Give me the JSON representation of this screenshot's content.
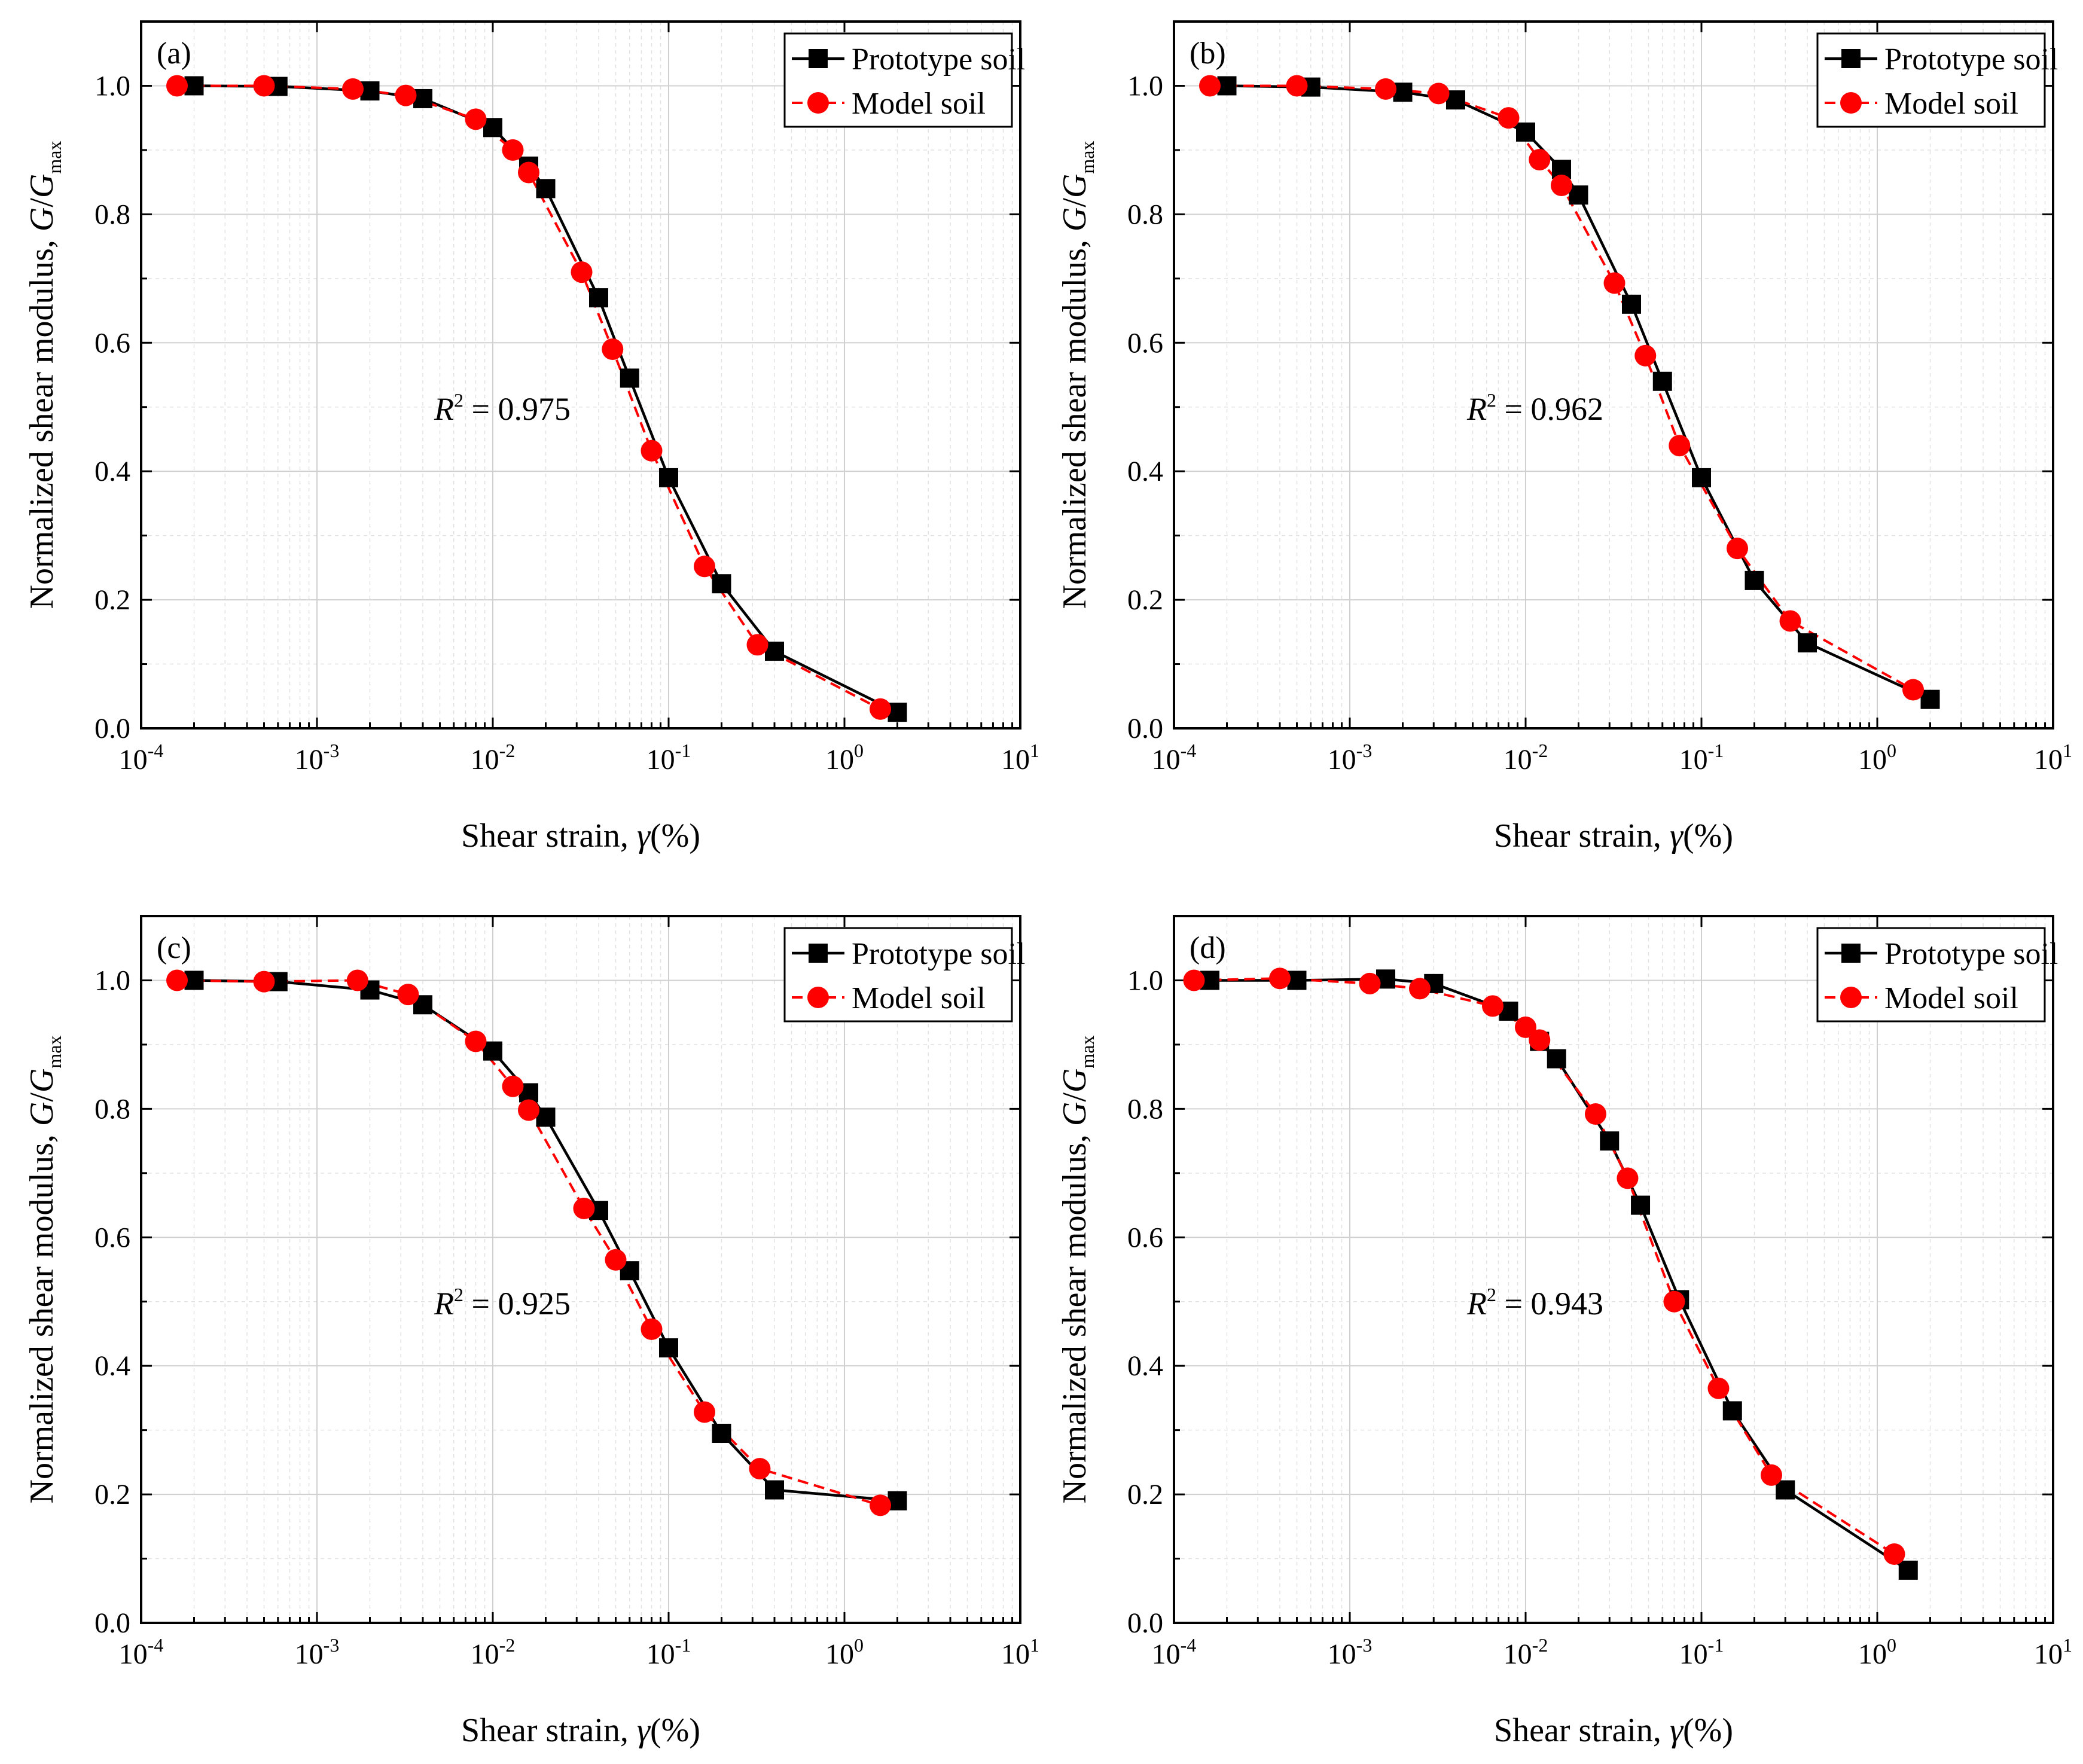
{
  "colors": {
    "prototype": "#000000",
    "model": "#ff0000",
    "grid": "#d0d0d0",
    "axis": "#000000"
  },
  "common": {
    "x_label_prefix": "Shear strain, ",
    "x_label_symbol": "γ",
    "x_label_unit": "(%)",
    "y_label_prefix": "Normalized shear modulus, ",
    "y_label_symbol_G": "G",
    "y_label_slash": "/",
    "y_label_sub": "max",
    "x_tick_labels": [
      {
        "base": "10",
        "exp": "-4"
      },
      {
        "base": "10",
        "exp": "-3"
      },
      {
        "base": "10",
        "exp": "-2"
      },
      {
        "base": "10",
        "exp": "-1"
      },
      {
        "base": "10",
        "exp": "0"
      },
      {
        "base": "10",
        "exp": "1"
      }
    ],
    "y_tick_labels": [
      "0.0",
      "0.2",
      "0.4",
      "0.6",
      "0.8",
      "1.0"
    ],
    "legend": {
      "prototype": "Prototype soil",
      "model": "Model soil"
    },
    "r2_symbol": "R",
    "r2_exp": "2",
    "r2_eq": " = "
  },
  "chart_data": [
    {
      "type": "line",
      "panel_label": "(a)",
      "r2": "0.975",
      "x_scale": "log",
      "xlim": [
        0.0001,
        10
      ],
      "ylim": [
        0,
        1.1
      ],
      "series": [
        {
          "name": "Prototype soil",
          "marker": "square",
          "line": "solid",
          "x": [
            0.0002,
            0.0006,
            0.002,
            0.004,
            0.01,
            0.016,
            0.02,
            0.04,
            0.06,
            0.1,
            0.2,
            0.4,
            2.0
          ],
          "y": [
            1.0,
            0.999,
            0.992,
            0.98,
            0.935,
            0.875,
            0.84,
            0.67,
            0.545,
            0.39,
            0.225,
            0.12,
            0.025
          ]
        },
        {
          "name": "Model soil",
          "marker": "circle",
          "line": "dashed",
          "x": [
            0.00016,
            0.0005,
            0.0016,
            0.0032,
            0.008,
            0.013,
            0.016,
            0.032,
            0.048,
            0.08,
            0.16,
            0.32,
            1.6
          ],
          "y": [
            1.0,
            1.0,
            0.995,
            0.985,
            0.948,
            0.9,
            0.865,
            0.71,
            0.59,
            0.432,
            0.252,
            0.13,
            0.03
          ]
        }
      ]
    },
    {
      "type": "line",
      "panel_label": "(b)",
      "r2": "0.962",
      "x_scale": "log",
      "xlim": [
        0.0001,
        10
      ],
      "ylim": [
        0,
        1.1
      ],
      "series": [
        {
          "name": "Prototype soil",
          "marker": "square",
          "line": "solid",
          "x": [
            0.0002,
            0.0006,
            0.002,
            0.004,
            0.01,
            0.016,
            0.02,
            0.04,
            0.06,
            0.1,
            0.2,
            0.4,
            2.0
          ],
          "y": [
            1.0,
            0.998,
            0.99,
            0.978,
            0.928,
            0.87,
            0.83,
            0.66,
            0.54,
            0.39,
            0.23,
            0.133,
            0.045
          ]
        },
        {
          "name": "Model soil",
          "marker": "circle",
          "line": "dashed",
          "x": [
            0.00016,
            0.0005,
            0.0016,
            0.0032,
            0.008,
            0.012,
            0.016,
            0.032,
            0.048,
            0.075,
            0.16,
            0.32,
            1.6
          ],
          "y": [
            1.0,
            1.0,
            0.995,
            0.988,
            0.95,
            0.885,
            0.845,
            0.693,
            0.58,
            0.44,
            0.28,
            0.167,
            0.06
          ]
        }
      ]
    },
    {
      "type": "line",
      "panel_label": "(c)",
      "r2": "0.925",
      "x_scale": "log",
      "xlim": [
        0.0001,
        10
      ],
      "ylim": [
        0,
        1.1
      ],
      "series": [
        {
          "name": "Prototype soil",
          "marker": "square",
          "line": "solid",
          "x": [
            0.0002,
            0.0006,
            0.002,
            0.004,
            0.01,
            0.016,
            0.02,
            0.04,
            0.06,
            0.1,
            0.2,
            0.4,
            2.0
          ],
          "y": [
            1.0,
            0.998,
            0.985,
            0.962,
            0.89,
            0.825,
            0.787,
            0.642,
            0.548,
            0.428,
            0.295,
            0.207,
            0.19
          ]
        },
        {
          "name": "Model soil",
          "marker": "circle",
          "line": "dashed",
          "x": [
            0.00016,
            0.0005,
            0.0017,
            0.0033,
            0.008,
            0.013,
            0.016,
            0.033,
            0.05,
            0.08,
            0.16,
            0.33,
            1.6
          ],
          "y": [
            1.0,
            0.998,
            1.0,
            0.978,
            0.905,
            0.835,
            0.798,
            0.645,
            0.565,
            0.457,
            0.328,
            0.24,
            0.183
          ]
        }
      ]
    },
    {
      "type": "line",
      "panel_label": "(d)",
      "r2": "0.943",
      "x_scale": "log",
      "xlim": [
        0.0001,
        10
      ],
      "ylim": [
        0,
        1.1
      ],
      "series": [
        {
          "name": "Prototype soil",
          "marker": "square",
          "line": "solid",
          "x": [
            0.00016,
            0.0005,
            0.0016,
            0.003,
            0.008,
            0.012,
            0.015,
            0.03,
            0.045,
            0.075,
            0.15,
            0.3,
            1.5
          ],
          "y": [
            1.0,
            1.0,
            1.002,
            0.995,
            0.952,
            0.905,
            0.878,
            0.75,
            0.65,
            0.503,
            0.33,
            0.207,
            0.082
          ]
        },
        {
          "name": "Model soil",
          "marker": "circle",
          "line": "dashed",
          "x": [
            0.00013,
            0.0004,
            0.0013,
            0.0025,
            0.0065,
            0.01,
            0.012,
            0.025,
            0.038,
            0.07,
            0.125,
            0.25,
            1.25
          ],
          "y": [
            1.0,
            1.003,
            0.995,
            0.987,
            0.96,
            0.927,
            0.907,
            0.792,
            0.692,
            0.5,
            0.365,
            0.23,
            0.107
          ]
        }
      ]
    }
  ]
}
